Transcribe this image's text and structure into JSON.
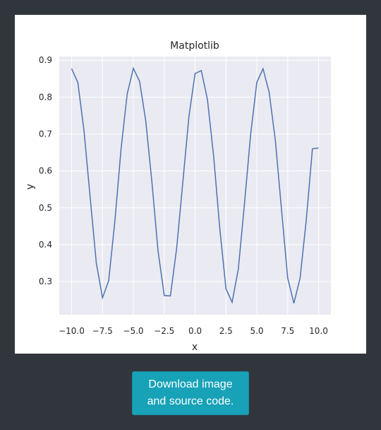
{
  "download": {
    "line1": "Download image",
    "line2": "and source code."
  },
  "colors": {
    "background": "#31363d",
    "card": "#ffffff",
    "plot_bg": "#eaeaf2",
    "grid": "#ffffff",
    "line": "#4c72b0",
    "button": "#17a2b8"
  },
  "chart_data": {
    "type": "line",
    "title": "Matplotlib",
    "xlabel": "x",
    "ylabel": "y",
    "xlim": [
      -11,
      11
    ],
    "ylim": [
      0.21,
      0.91
    ],
    "xticks": [
      -10.0,
      -7.5,
      -5.0,
      -2.5,
      0.0,
      2.5,
      5.0,
      7.5,
      10.0
    ],
    "xtick_labels": [
      "−10.0",
      "−7.5",
      "−5.0",
      "−2.5",
      "0.0",
      "2.5",
      "5.0",
      "7.5",
      "10.0"
    ],
    "yticks": [
      0.3,
      0.4,
      0.5,
      0.6,
      0.7,
      0.8,
      0.9
    ],
    "ytick_labels": [
      "0.3",
      "0.4",
      "0.5",
      "0.6",
      "0.7",
      "0.8",
      "0.9"
    ],
    "grid": true,
    "series": [
      {
        "x": [
          -10.0,
          -9.5,
          -9.0,
          -8.5,
          -8.0,
          -7.5,
          -7.0,
          -6.5,
          -6.0,
          -5.5,
          -5.0,
          -4.5,
          -4.0,
          -3.5,
          -3.0,
          -2.5,
          -2.0,
          -1.5,
          -1.0,
          -0.5,
          0.0,
          0.5,
          1.0,
          1.5,
          2.0,
          2.5,
          3.0,
          3.5,
          4.0,
          4.5,
          5.0,
          5.5,
          6.0,
          6.5,
          7.0,
          7.5,
          8.0,
          8.5,
          9.0,
          9.5,
          10.0
        ],
        "y": [
          0.877,
          0.84,
          0.71,
          0.528,
          0.35,
          0.256,
          0.302,
          0.463,
          0.658,
          0.809,
          0.878,
          0.843,
          0.737,
          0.57,
          0.383,
          0.262,
          0.261,
          0.389,
          0.567,
          0.748,
          0.864,
          0.872,
          0.794,
          0.64,
          0.444,
          0.28,
          0.244,
          0.334,
          0.511,
          0.7,
          0.84,
          0.877,
          0.813,
          0.682,
          0.495,
          0.309,
          0.241,
          0.309,
          0.465,
          0.66,
          0.662
        ]
      }
    ]
  }
}
